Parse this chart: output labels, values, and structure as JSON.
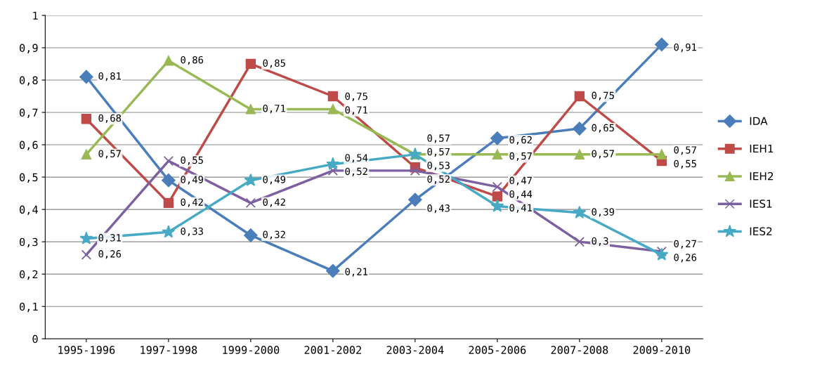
{
  "chart_data": {
    "type": "line",
    "categories": [
      "1995-1996",
      "1997-1998",
      "1999-2000",
      "2001-2002",
      "2003-2004",
      "2005-2006",
      "2007-2008",
      "2009-2010"
    ],
    "series": [
      {
        "name": "IDA",
        "color": "#4a7ebb",
        "marker": "diamond",
        "values": [
          0.81,
          0.49,
          0.32,
          0.21,
          0.43,
          0.62,
          0.65,
          0.91
        ],
        "value_labels": [
          "0,81",
          "0,49",
          "0,32",
          "0,21",
          "0,43",
          "0,62",
          "0,65",
          "0,91"
        ]
      },
      {
        "name": "IEH1",
        "color": "#be4b48",
        "marker": "square",
        "values": [
          0.68,
          0.42,
          0.85,
          0.75,
          0.53,
          0.44,
          0.75,
          0.55
        ],
        "value_labels": [
          "0,68",
          "0,42",
          "0,85",
          "0,75",
          "0,53",
          "0,44",
          "0,75",
          "0,55"
        ]
      },
      {
        "name": "IEH2",
        "color": "#98b954",
        "marker": "triangle",
        "values": [
          0.57,
          0.86,
          0.71,
          0.71,
          0.57,
          0.57,
          0.57,
          0.57
        ],
        "value_labels": [
          "0,57",
          "0,86",
          "0,71",
          "0,71",
          "0,57",
          "0,57",
          "0,57",
          "0,57"
        ]
      },
      {
        "name": "IES1",
        "color": "#7d60a0",
        "marker": "cross",
        "values": [
          0.26,
          0.55,
          0.42,
          0.52,
          0.52,
          0.47,
          0.3,
          0.27
        ],
        "value_labels": [
          "0,26",
          "0,55",
          "0,42",
          "0,52",
          "0,52",
          "0,47",
          "0,3",
          "0,27"
        ]
      },
      {
        "name": "IES2",
        "color": "#46aac5",
        "marker": "star",
        "values": [
          0.31,
          0.33,
          0.49,
          0.54,
          0.57,
          0.41,
          0.39,
          0.26
        ],
        "value_labels": [
          "0,31",
          "0,33",
          "0,49",
          "0,54",
          "0,57",
          "0,41",
          "0,39",
          "0,26"
        ]
      }
    ],
    "ylim": [
      0,
      1
    ],
    "yticks": [
      0,
      {
        "value": 0.1,
        "label": "0,1"
      },
      {
        "value": 0.2,
        "label": "0,2"
      },
      {
        "value": 0.3,
        "label": "0,3"
      },
      {
        "value": 0.4,
        "label": "0,4"
      },
      {
        "value": 0.5,
        "label": "0,5"
      },
      {
        "value": 0.6,
        "label": "0,6"
      },
      {
        "value": 0.7,
        "label": "0,7"
      },
      {
        "value": 0.8,
        "label": "0,8"
      },
      {
        "value": 0.9,
        "label": "0,9"
      },
      1
    ],
    "grid": "y",
    "legend": "right",
    "line_style": "solid"
  }
}
